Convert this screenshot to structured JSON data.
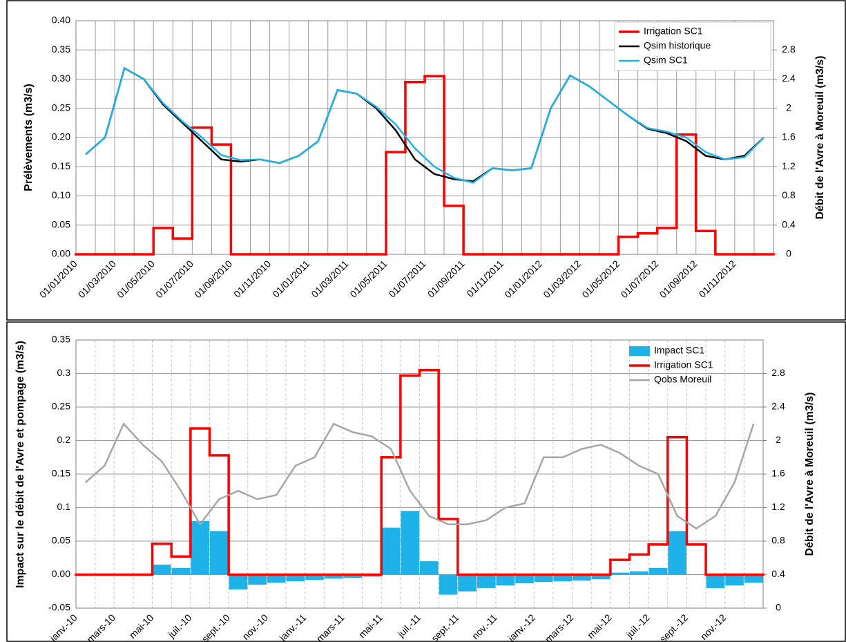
{
  "chart_data": [
    {
      "type": "line",
      "ylabel": "Prélèvements (m3/s)",
      "y2label": "Débit de l'Avre à Moreuil (m3/s)",
      "x": [
        "01/01/2010",
        "01/02/2010",
        "01/03/2010",
        "01/04/2010",
        "01/05/2010",
        "01/06/2010",
        "01/07/2010",
        "01/08/2010",
        "01/09/2010",
        "01/10/2010",
        "01/11/2010",
        "01/12/2010",
        "01/01/2011",
        "01/02/2011",
        "01/03/2011",
        "01/04/2011",
        "01/05/2011",
        "01/06/2011",
        "01/07/2011",
        "01/08/2011",
        "01/09/2011",
        "01/10/2011",
        "01/11/2011",
        "01/12/2011",
        "01/01/2012",
        "01/02/2012",
        "01/03/2012",
        "01/04/2012",
        "01/05/2012",
        "01/06/2012",
        "01/07/2012",
        "01/08/2012",
        "01/09/2012",
        "01/10/2012",
        "01/11/2012",
        "01/12/2012"
      ],
      "xticks": [
        "01/01/2010",
        "01/03/2010",
        "01/05/2010",
        "01/07/2010",
        "01/09/2010",
        "01/11/2010",
        "01/01/2011",
        "01/03/2011",
        "01/05/2011",
        "01/07/2011",
        "01/09/2011",
        "01/11/2011",
        "01/01/2012",
        "01/03/2012",
        "01/05/2012",
        "01/07/2012",
        "01/09/2012",
        "01/11/2012"
      ],
      "ylim": [
        0,
        0.4
      ],
      "yticks": [
        {
          "value": 0,
          "label": "0.00"
        },
        0.05,
        {
          "value": 0.1,
          "label": "0.10"
        },
        0.15,
        {
          "value": 0.2,
          "label": "0.20"
        },
        0.25,
        {
          "value": 0.3,
          "label": "0.30"
        },
        0.35,
        {
          "value": 0.4,
          "label": "0.40"
        }
      ],
      "y2lim": [
        0,
        3.2
      ],
      "y2ticks": [
        0,
        0.4,
        0.8,
        1.2,
        1.6,
        2,
        2.4,
        2.8
      ],
      "grid": true,
      "legend": "top-right",
      "series": [
        {
          "name": "Irrigation SC1",
          "color": "#ff0000",
          "type": "step",
          "values": [
            0,
            0,
            0,
            0,
            0.045,
            0.027,
            0.217,
            0.188,
            0,
            0,
            0,
            0,
            0,
            0,
            0,
            0,
            0.175,
            0.295,
            0.305,
            0.083,
            0,
            0,
            0,
            0,
            0,
            0,
            0,
            0,
            0.03,
            0.036,
            0.045,
            0.205,
            0.04,
            0,
            0,
            0
          ]
        },
        {
          "name": "Qsim historique",
          "color": "#000000",
          "type": "line",
          "axis": "y2",
          "values": [
            1.37,
            1.6,
            2.55,
            2.4,
            2.05,
            1.8,
            1.55,
            1.3,
            1.27,
            1.3,
            1.25,
            1.35,
            1.55,
            2.25,
            2.2,
            2.0,
            1.7,
            1.3,
            1.1,
            1.03,
            1.0,
            1.18,
            1.15,
            1.18,
            2.0,
            2.45,
            2.3,
            2.1,
            1.9,
            1.72,
            1.66,
            1.55,
            1.35,
            1.3,
            1.35,
            1.6
          ]
        },
        {
          "name": "Qsim SC1",
          "color": "#1fb2e8",
          "type": "line",
          "axis": "y2",
          "values": [
            1.37,
            1.6,
            2.55,
            2.4,
            2.07,
            1.82,
            1.6,
            1.36,
            1.29,
            1.3,
            1.25,
            1.35,
            1.55,
            2.25,
            2.2,
            2.02,
            1.78,
            1.45,
            1.2,
            1.05,
            0.98,
            1.18,
            1.15,
            1.18,
            2.0,
            2.45,
            2.3,
            2.1,
            1.9,
            1.73,
            1.68,
            1.6,
            1.4,
            1.3,
            1.33,
            1.6
          ]
        }
      ]
    },
    {
      "type": "bar",
      "ylabel": "Impact sur le débit de l'Avre et pompage (m3/s)",
      "y2label": "Débit de l'Avre à Moreuil (m3/s)",
      "categories": [
        "janv.-10",
        null,
        "mars-10",
        null,
        "mai-10",
        null,
        "juil.-10",
        null,
        "sept.-10",
        null,
        "nov.-10",
        null,
        "janv.-11",
        null,
        "mars-11",
        null,
        "mai-11",
        null,
        "juil.-11",
        null,
        "sept.-11",
        null,
        "nov.-11",
        null,
        "janv.-12",
        null,
        "mars-12",
        null,
        "mai-12",
        null,
        "juil.-12",
        null,
        "sept.-12",
        null,
        "nov.-12",
        null
      ],
      "ylim": [
        -0.05,
        0.35
      ],
      "yticks": [
        -0.05,
        {
          "value": 0,
          "label": "0.00"
        },
        0.05,
        0.1,
        0.15,
        0.2,
        0.25,
        0.3,
        0.35
      ],
      "y2lim": [
        0,
        3.2
      ],
      "y2ticks": [
        0,
        0.4,
        0.8,
        1.2,
        1.6,
        2,
        2.4,
        2.8
      ],
      "grid": true,
      "legend": "top-right",
      "series": [
        {
          "name": "Impact SC1",
          "color": "#1fb2e8",
          "type": "bar",
          "values": [
            0,
            0,
            0,
            0,
            0.015,
            0.01,
            0.08,
            0.065,
            -0.022,
            -0.015,
            -0.012,
            -0.01,
            -0.008,
            -0.006,
            -0.005,
            -0.003,
            0.07,
            0.095,
            0.02,
            -0.03,
            -0.025,
            -0.02,
            -0.016,
            -0.013,
            -0.011,
            -0.01,
            -0.009,
            -0.007,
            0.003,
            0.005,
            0.01,
            0.065,
            0,
            -0.02,
            -0.016,
            -0.012
          ]
        },
        {
          "name": "Irrigation SC1",
          "color": "#ff0000",
          "type": "step",
          "values": [
            0,
            0,
            0,
            0,
            0.046,
            0.027,
            0.218,
            0.178,
            0,
            0,
            0,
            0,
            0,
            0,
            0,
            0,
            0.175,
            0.297,
            0.305,
            0.083,
            0,
            0,
            0,
            0,
            0,
            0,
            0,
            0,
            0.022,
            0.03,
            0.045,
            0.205,
            0.045,
            0,
            0,
            0
          ]
        },
        {
          "name": "Qobs Moreuil",
          "color": "#a6a6a6",
          "type": "line",
          "axis": "y2",
          "values": [
            1.5,
            1.7,
            2.2,
            1.95,
            1.75,
            1.4,
            1.0,
            1.3,
            1.4,
            1.3,
            1.35,
            1.7,
            1.8,
            2.2,
            2.1,
            2.05,
            1.9,
            1.4,
            1.1,
            1.0,
            1.0,
            1.05,
            1.2,
            1.25,
            1.8,
            1.8,
            1.9,
            1.95,
            1.85,
            1.7,
            1.6,
            1.1,
            0.95,
            1.1,
            1.5,
            2.2
          ]
        }
      ]
    }
  ]
}
